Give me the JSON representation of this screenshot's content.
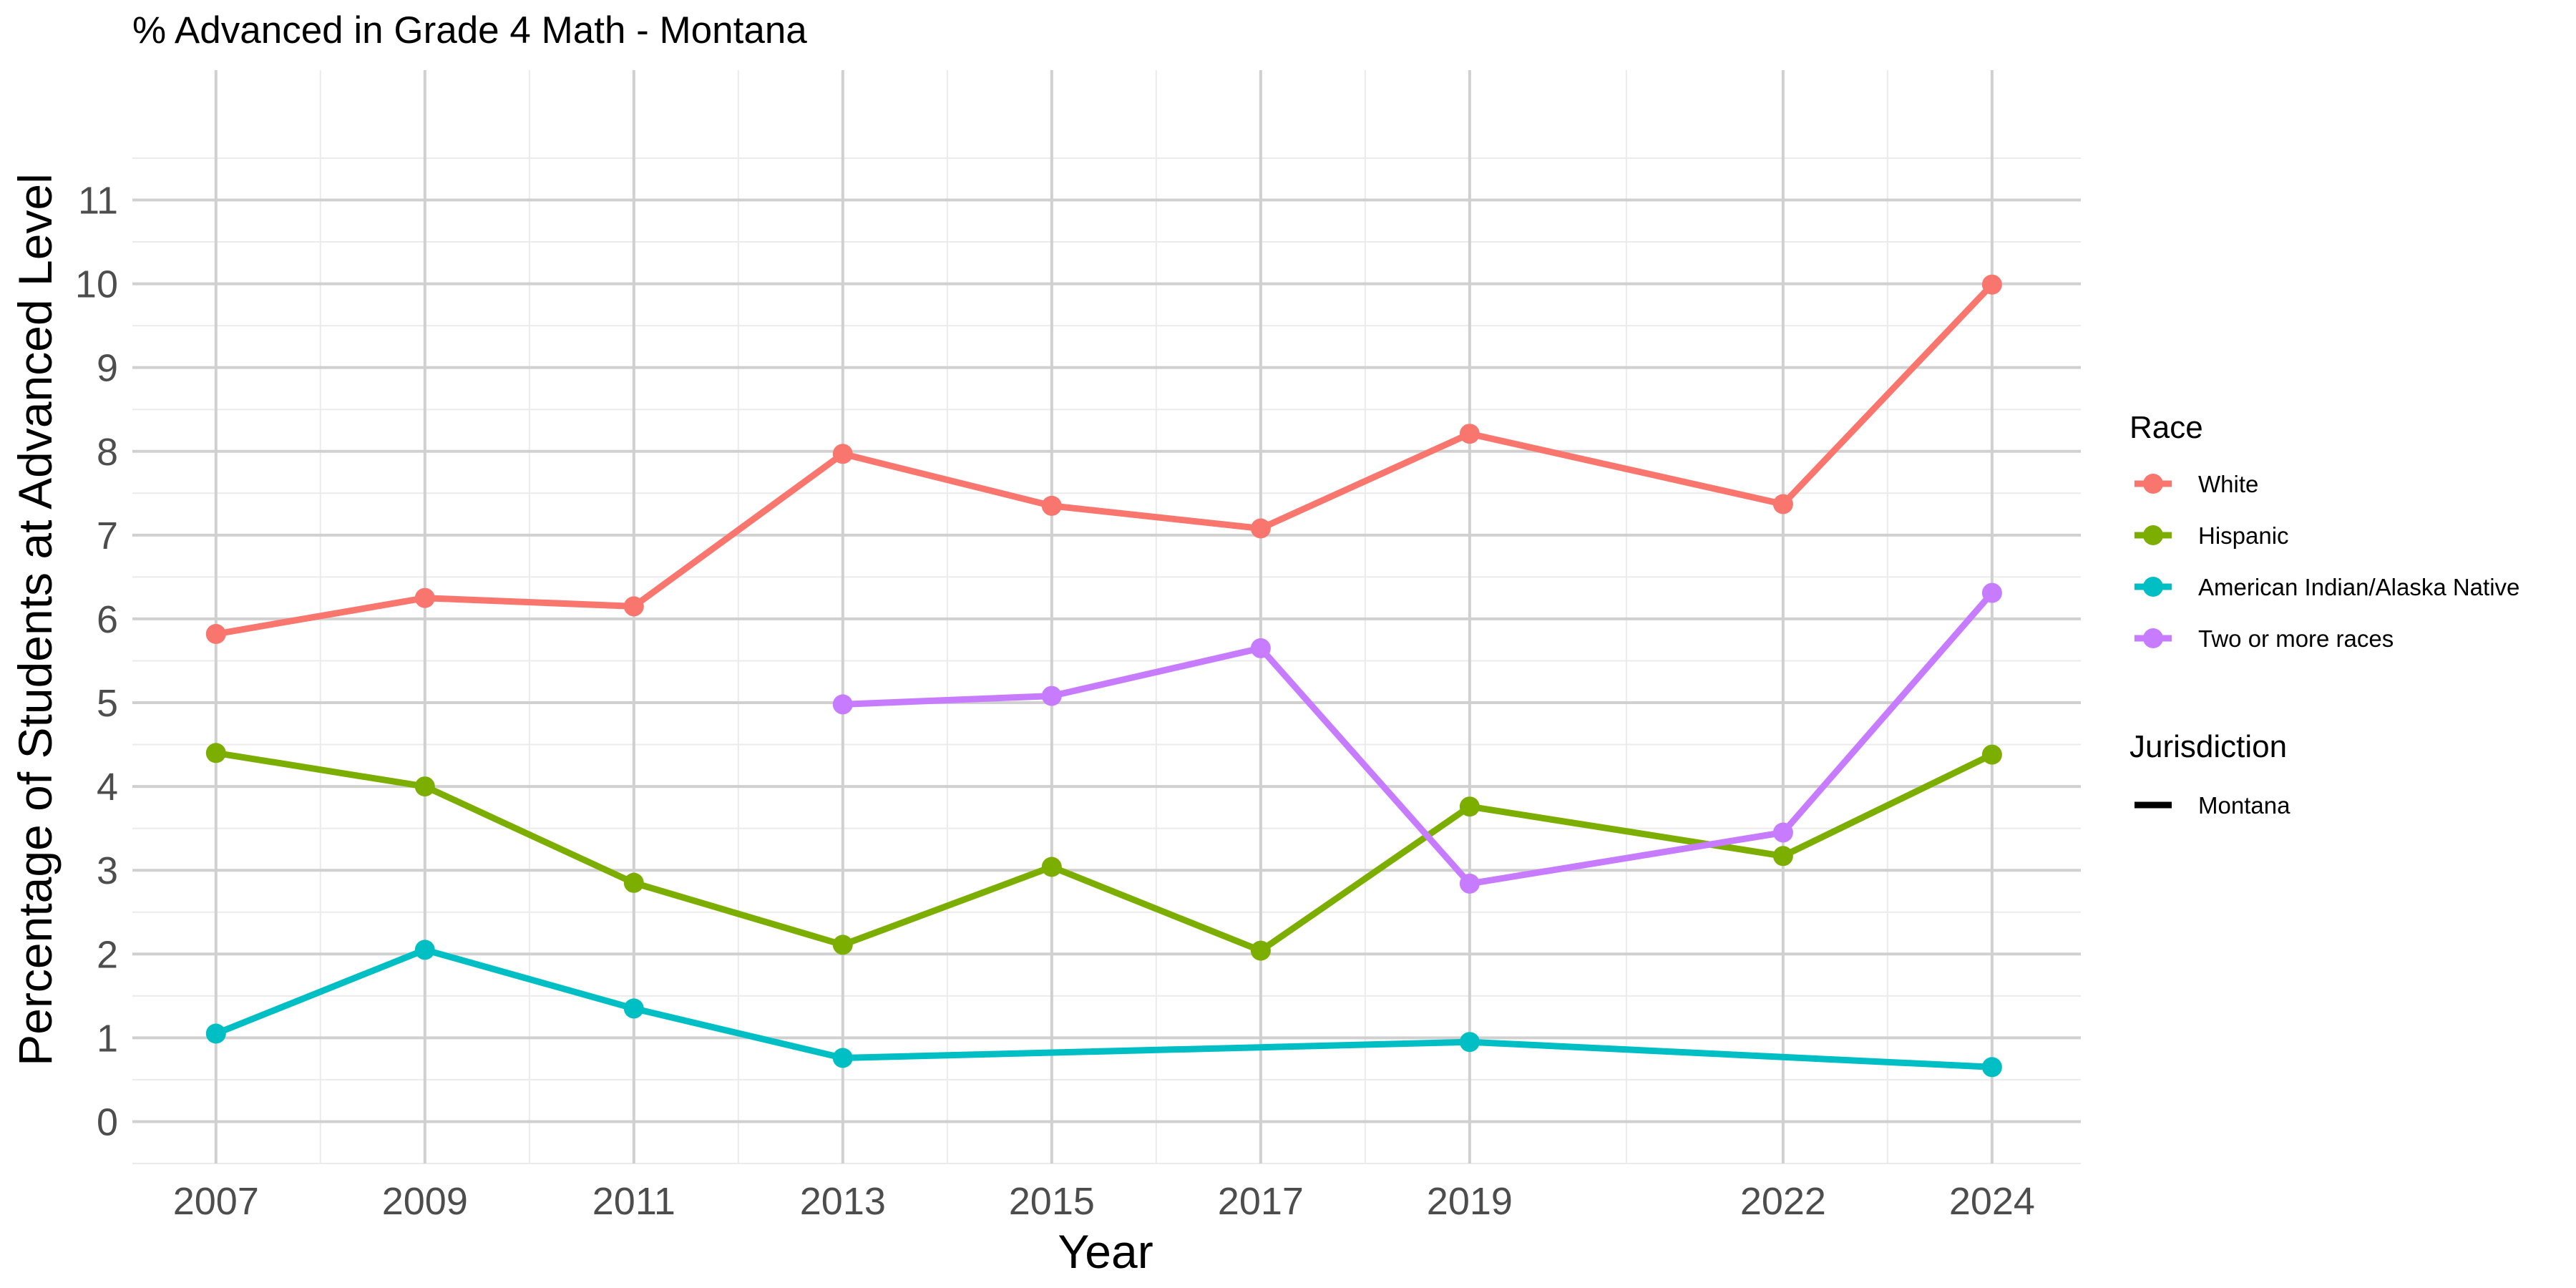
{
  "chart_data": {
    "type": "line",
    "title": "% Advanced in Grade 4 Math - Montana",
    "xlabel": "Year",
    "ylabel": "Percentage of Students at Advanced Level",
    "x_ticks": [
      2007,
      2009,
      2011,
      2013,
      2015,
      2017,
      2019,
      2022,
      2024
    ],
    "y_ticks": [
      0,
      1,
      2,
      3,
      4,
      5,
      6,
      7,
      8,
      9,
      10,
      11
    ],
    "xlim": [
      2006.2,
      2024.85
    ],
    "ylim": [
      -0.5,
      12.55
    ],
    "grid": true,
    "legend_position": "right",
    "legend": {
      "color_title": "Race",
      "linetype_title": "Jurisdiction",
      "linetype_entries": [
        {
          "label": "Montana",
          "color": "#000000"
        }
      ]
    },
    "series": [
      {
        "name": "White",
        "color": "#F8766D",
        "points": [
          {
            "x": 2007,
            "y": 5.82
          },
          {
            "x": 2009,
            "y": 6.25
          },
          {
            "x": 2011,
            "y": 6.15
          },
          {
            "x": 2013,
            "y": 7.97
          },
          {
            "x": 2015,
            "y": 7.35
          },
          {
            "x": 2017,
            "y": 7.08
          },
          {
            "x": 2019,
            "y": 8.21
          },
          {
            "x": 2022,
            "y": 7.37
          },
          {
            "x": 2024,
            "y": 9.99
          }
        ]
      },
      {
        "name": "Hispanic",
        "color": "#7CAE00",
        "points": [
          {
            "x": 2007,
            "y": 4.4
          },
          {
            "x": 2009,
            "y": 4.0
          },
          {
            "x": 2011,
            "y": 2.85
          },
          {
            "x": 2013,
            "y": 2.11
          },
          {
            "x": 2015,
            "y": 3.04
          },
          {
            "x": 2017,
            "y": 2.04
          },
          {
            "x": 2019,
            "y": 3.76
          },
          {
            "x": 2022,
            "y": 3.17
          },
          {
            "x": 2024,
            "y": 4.38
          }
        ]
      },
      {
        "name": "American Indian/Alaska Native",
        "color": "#00BFC4",
        "points": [
          {
            "x": 2007,
            "y": 1.05
          },
          {
            "x": 2009,
            "y": 2.05
          },
          {
            "x": 2011,
            "y": 1.35
          },
          {
            "x": 2013,
            "y": 0.76
          },
          {
            "x": 2019,
            "y": 0.95
          },
          {
            "x": 2024,
            "y": 0.65
          }
        ]
      },
      {
        "name": "Two or more races",
        "color": "#C77CFF",
        "points": [
          {
            "x": 2013,
            "y": 4.98
          },
          {
            "x": 2015,
            "y": 5.08
          },
          {
            "x": 2017,
            "y": 5.65
          },
          {
            "x": 2019,
            "y": 2.84
          },
          {
            "x": 2022,
            "y": 3.45
          },
          {
            "x": 2024,
            "y": 6.31
          }
        ]
      }
    ]
  }
}
